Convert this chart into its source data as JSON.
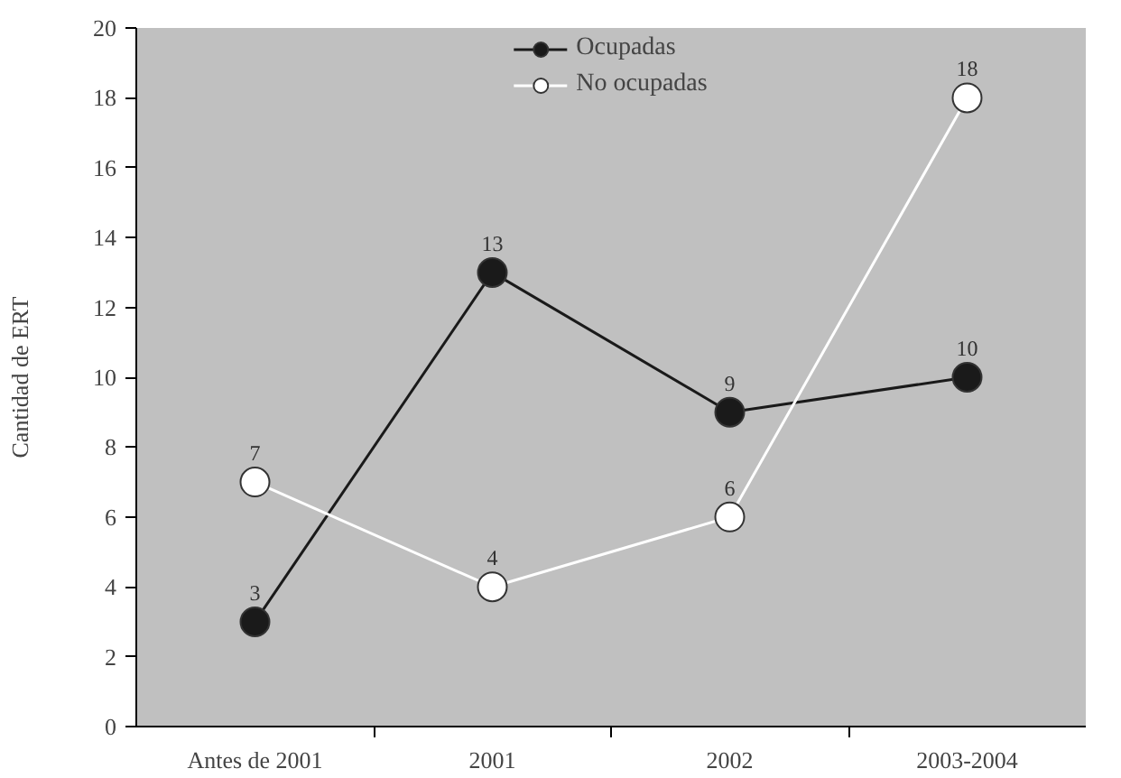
{
  "chart_data": {
    "type": "line",
    "ylabel": "Cantidad de ERT",
    "categories": [
      "Antes de 2001",
      "2001",
      "2002",
      "2003-2004"
    ],
    "series": [
      {
        "name": "Ocupadas",
        "color": "#1a1a1a",
        "values": [
          3,
          13,
          9,
          10
        ]
      },
      {
        "name": "No ocupadas",
        "color": "#ffffff",
        "values": [
          7,
          4,
          6,
          18
        ]
      }
    ],
    "ylim": [
      0,
      20
    ],
    "yticks": [
      0,
      2,
      4,
      6,
      8,
      10,
      12,
      14,
      16,
      18,
      20
    ],
    "marker": "circle",
    "line_style": "solid",
    "grid": false,
    "legend": "top",
    "data_labels": true
  }
}
